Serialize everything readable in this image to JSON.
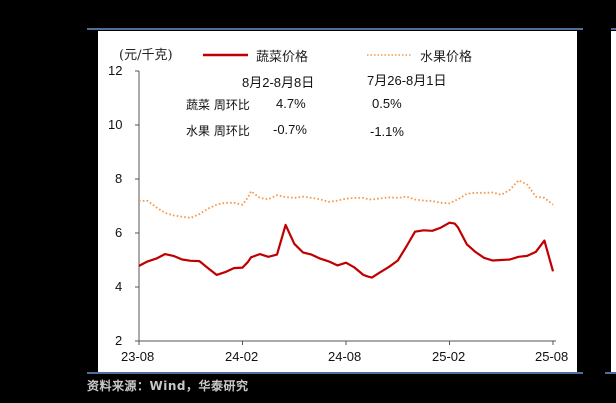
{
  "chart_data": {
    "type": "line",
    "title": "",
    "ylabel": "(元/千克)",
    "xlabel": "",
    "ylim": [
      2,
      12
    ],
    "yticks": [
      2,
      4,
      6,
      8,
      10,
      12
    ],
    "xticks": [
      "23-08",
      "24-02",
      "24-08",
      "25-02",
      "25-08"
    ],
    "grid": false,
    "legend_position": "top",
    "x_month_index": [
      0,
      0.5,
      1,
      1.5,
      2,
      2.5,
      3,
      3.5,
      4,
      4.5,
      5,
      5.5,
      6,
      6.3,
      6.5,
      7,
      7.5,
      8,
      8.5,
      9,
      9.5,
      10,
      10.5,
      11,
      11.5,
      12,
      12.5,
      13,
      13.3,
      13.5,
      14,
      14.5,
      15,
      15.5,
      16,
      16.5,
      17,
      17.5,
      18,
      18.3,
      18.5,
      19,
      19.5,
      20,
      20.5,
      21,
      21.5,
      22,
      22.5,
      23,
      23.5,
      24
    ],
    "series": [
      {
        "name": "蔬菜价格",
        "color": "#c00000",
        "style": "solid",
        "values": [
          4.78,
          4.95,
          5.05,
          5.22,
          5.15,
          5.02,
          4.97,
          4.96,
          4.7,
          4.45,
          4.55,
          4.7,
          4.72,
          4.92,
          5.1,
          5.22,
          5.12,
          5.2,
          6.3,
          5.6,
          5.28,
          5.2,
          5.05,
          4.95,
          4.8,
          4.9,
          4.72,
          4.45,
          4.38,
          4.35,
          4.55,
          4.75,
          4.98,
          5.5,
          6.05,
          6.1,
          6.08,
          6.2,
          6.38,
          6.35,
          6.2,
          5.58,
          5.3,
          5.08,
          4.98,
          5.0,
          5.02,
          5.12,
          5.15,
          5.3,
          5.72,
          4.58
        ]
      },
      {
        "name": "水果价格",
        "color": "#f79646",
        "style": "dotted",
        "values": [
          7.19,
          7.19,
          6.95,
          6.75,
          6.65,
          6.6,
          6.56,
          6.7,
          6.9,
          7.05,
          7.12,
          7.12,
          7.05,
          7.3,
          7.55,
          7.3,
          7.25,
          7.4,
          7.33,
          7.3,
          7.35,
          7.3,
          7.25,
          7.15,
          7.2,
          7.27,
          7.3,
          7.3,
          7.25,
          7.24,
          7.28,
          7.32,
          7.3,
          7.35,
          7.24,
          7.2,
          7.18,
          7.12,
          7.1,
          7.2,
          7.25,
          7.45,
          7.49,
          7.49,
          7.5,
          7.42,
          7.6,
          7.95,
          7.8,
          7.35,
          7.3,
          7.05
        ]
      }
    ],
    "annotations": {
      "header_current": "8月2-8月8日",
      "header_previous": "7月26-8月1日",
      "rows": [
        {
          "label": "蔬菜  周环比",
          "current": "4.7%",
          "previous": "0.5%"
        },
        {
          "label": "水果  周环比",
          "current": "-0.7%",
          "previous": "-1.1%"
        }
      ]
    }
  },
  "legend": {
    "vegetable": "蔬菜价格",
    "fruit": "水果价格"
  },
  "axis": {
    "unit": "(元/千克)",
    "y_labels": [
      "12",
      "10",
      "8",
      "6",
      "4",
      "2"
    ],
    "x_labels": [
      "23-08",
      "24-02",
      "24-08",
      "25-02",
      "25-08"
    ]
  },
  "source": "资料来源：Wind，华泰研究"
}
